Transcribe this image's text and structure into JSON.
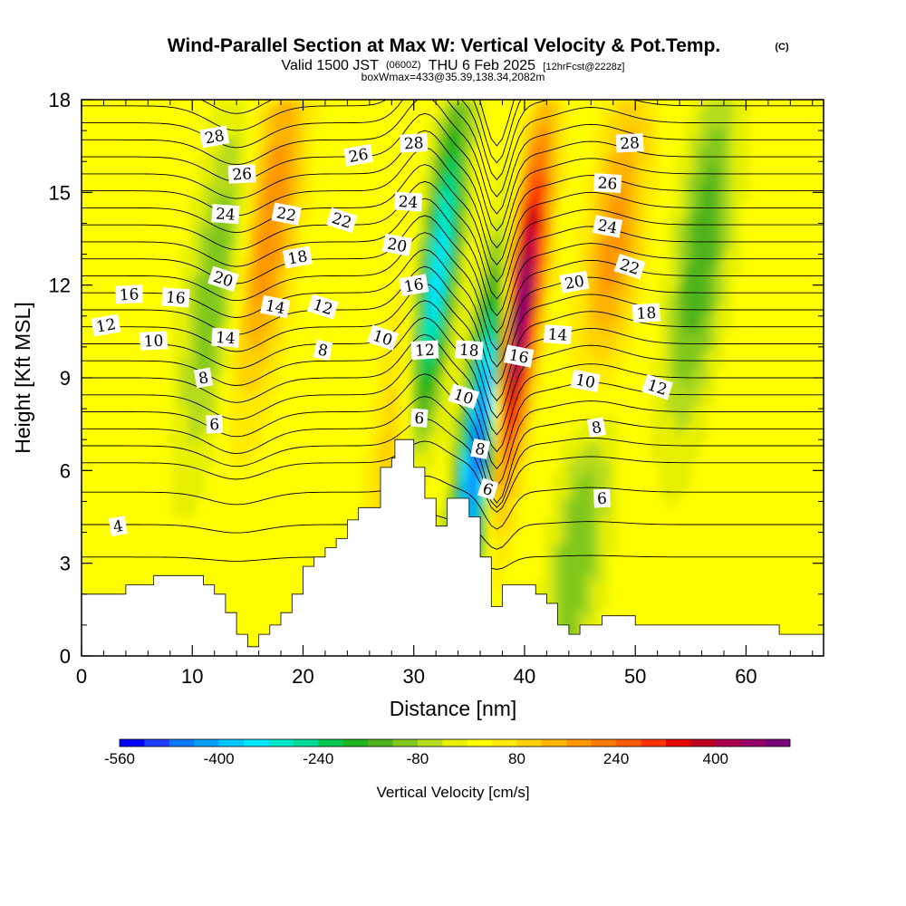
{
  "header": {
    "title": "Wind-Parallel Section at Max W: Vertical Velocity & Pot.Temp.",
    "copyright": "(C)",
    "valid_prefix": "Valid 1500 JST",
    "valid_utc": "(0600Z)",
    "valid_date": "THU 6 Feb 2025",
    "forecast": "[12hrFcst@2228z]",
    "box_info": "boxWmax=433@35.39,138.34,2082m"
  },
  "chart_data": {
    "type": "heatmap",
    "xlabel": "Distance [nm]",
    "ylabel": "Height [Kft MSL]",
    "xlim": [
      0,
      67
    ],
    "ylim": [
      0,
      18
    ],
    "x_ticks": [
      0,
      10,
      20,
      30,
      40,
      50,
      60
    ],
    "x_tick_labels": [
      "0",
      "10",
      "20",
      "30",
      "40",
      "50",
      "60"
    ],
    "y_ticks": [
      0,
      3,
      6,
      9,
      12,
      15,
      18
    ],
    "y_tick_labels": [
      "0",
      "3",
      "6",
      "9",
      "12",
      "15",
      "18"
    ],
    "field": "Vertical Velocity",
    "colorbar": {
      "title": "Vertical Velocity [cm/s]",
      "min": -560,
      "max": 520,
      "step": 40,
      "labels": [
        "-560",
        "-400",
        "-240",
        "-80",
        "80",
        "240",
        "400"
      ],
      "label_values": [
        -560,
        -400,
        -240,
        -80,
        80,
        240,
        400
      ],
      "colors": [
        "#0000ff",
        "#1e3cff",
        "#0a78ff",
        "#00a0ff",
        "#00c8ff",
        "#00e6ff",
        "#00e6c8",
        "#00dc96",
        "#00c850",
        "#1eb41e",
        "#50b41e",
        "#82c81e",
        "#b4dc1e",
        "#e6f000",
        "#ffff00",
        "#ffeb00",
        "#ffd200",
        "#ffb400",
        "#ff9600",
        "#ff7800",
        "#ff5a00",
        "#ff3200",
        "#e60000",
        "#be001e",
        "#aa0050",
        "#960064",
        "#780078"
      ]
    },
    "w_extrema": [
      {
        "x": 32,
        "z": 12,
        "w": -420
      },
      {
        "x": 36,
        "z": 7,
        "w": -560
      },
      {
        "x": 39.5,
        "z": 11,
        "w": 520
      },
      {
        "x": 29,
        "z": 7,
        "w": 130
      },
      {
        "x": 17,
        "z": 14,
        "w": 180
      },
      {
        "x": 48,
        "z": 13,
        "w": 170
      },
      {
        "x": 12,
        "z": 12,
        "w": -140
      },
      {
        "x": 56,
        "z": 13,
        "w": -180
      },
      {
        "x": 45,
        "z": 4,
        "w": -150
      }
    ],
    "theta_contour_labels": [
      {
        "text": "28",
        "x": 12,
        "z": 16.8
      },
      {
        "text": "26",
        "x": 14.5,
        "z": 15.6
      },
      {
        "text": "24",
        "x": 13,
        "z": 14.3
      },
      {
        "text": "22",
        "x": 18.5,
        "z": 14.3
      },
      {
        "text": "22",
        "x": 23.5,
        "z": 14.1
      },
      {
        "text": "26",
        "x": 25,
        "z": 16.2
      },
      {
        "text": "28",
        "x": 30,
        "z": 16.6
      },
      {
        "text": "24",
        "x": 29.5,
        "z": 14.7
      },
      {
        "text": "20",
        "x": 28.5,
        "z": 13.3
      },
      {
        "text": "20",
        "x": 12.8,
        "z": 12.2
      },
      {
        "text": "18",
        "x": 19.5,
        "z": 12.9
      },
      {
        "text": "16",
        "x": 4.3,
        "z": 11.7
      },
      {
        "text": "16",
        "x": 8.5,
        "z": 11.6
      },
      {
        "text": "14",
        "x": 17.5,
        "z": 11.3
      },
      {
        "text": "12",
        "x": 21.8,
        "z": 11.3
      },
      {
        "text": "12",
        "x": 2.2,
        "z": 10.7
      },
      {
        "text": "10",
        "x": 6.5,
        "z": 10.2
      },
      {
        "text": "14",
        "x": 13,
        "z": 10.3
      },
      {
        "text": "8",
        "x": 21.8,
        "z": 9.9
      },
      {
        "text": "10",
        "x": 27.2,
        "z": 10.3
      },
      {
        "text": "16",
        "x": 30,
        "z": 12.0
      },
      {
        "text": "12",
        "x": 31,
        "z": 9.9
      },
      {
        "text": "18",
        "x": 35,
        "z": 9.9
      },
      {
        "text": "16",
        "x": 39.5,
        "z": 9.7
      },
      {
        "text": "10",
        "x": 34.5,
        "z": 8.4
      },
      {
        "text": "8",
        "x": 11,
        "z": 9.0
      },
      {
        "text": "6",
        "x": 12,
        "z": 7.5
      },
      {
        "text": "6",
        "x": 30.5,
        "z": 7.7
      },
      {
        "text": "8",
        "x": 36,
        "z": 6.7
      },
      {
        "text": "6",
        "x": 36.7,
        "z": 5.4
      },
      {
        "text": "4",
        "x": 3.3,
        "z": 4.2
      },
      {
        "text": "28",
        "x": 49.5,
        "z": 16.6
      },
      {
        "text": "26",
        "x": 47.5,
        "z": 15.3
      },
      {
        "text": "24",
        "x": 47.5,
        "z": 13.9
      },
      {
        "text": "22",
        "x": 49.5,
        "z": 12.6
      },
      {
        "text": "20",
        "x": 44.5,
        "z": 12.1
      },
      {
        "text": "18",
        "x": 51,
        "z": 11.1
      },
      {
        "text": "14",
        "x": 43,
        "z": 10.4
      },
      {
        "text": "10",
        "x": 45.5,
        "z": 8.9
      },
      {
        "text": "12",
        "x": 52,
        "z": 8.7
      },
      {
        "text": "8",
        "x": 46.5,
        "z": 7.4
      },
      {
        "text": "6",
        "x": 47,
        "z": 5.1
      }
    ],
    "terrain_profile": [
      [
        0,
        2.0
      ],
      [
        4,
        2.0
      ],
      [
        4,
        2.3
      ],
      [
        6.5,
        2.3
      ],
      [
        6.5,
        2.6
      ],
      [
        11,
        2.6
      ],
      [
        11,
        2.3
      ],
      [
        12,
        2.3
      ],
      [
        12,
        2.0
      ],
      [
        13,
        2.0
      ],
      [
        13,
        1.4
      ],
      [
        14,
        1.4
      ],
      [
        14,
        0.7
      ],
      [
        15,
        0.7
      ],
      [
        15,
        0.3
      ],
      [
        16,
        0.3
      ],
      [
        16,
        0.7
      ],
      [
        17,
        0.7
      ],
      [
        17,
        1.0
      ],
      [
        18,
        1.0
      ],
      [
        18,
        1.4
      ],
      [
        19,
        1.4
      ],
      [
        19,
        2.0
      ],
      [
        20,
        2.0
      ],
      [
        20,
        2.9
      ],
      [
        21,
        2.9
      ],
      [
        21,
        3.2
      ],
      [
        22,
        3.2
      ],
      [
        22,
        3.5
      ],
      [
        23,
        3.5
      ],
      [
        23,
        3.8
      ],
      [
        24,
        3.8
      ],
      [
        24,
        4.4
      ],
      [
        25,
        4.4
      ],
      [
        25,
        4.8
      ],
      [
        27,
        4.8
      ],
      [
        27,
        6.1
      ],
      [
        28,
        6.1
      ],
      [
        28,
        6.4
      ],
      [
        28.3,
        6.4
      ],
      [
        28.3,
        7.0
      ],
      [
        30,
        7.0
      ],
      [
        30,
        6.1
      ],
      [
        31,
        6.1
      ],
      [
        31,
        5.1
      ],
      [
        32,
        5.1
      ],
      [
        32,
        4.2
      ],
      [
        33,
        4.2
      ],
      [
        33,
        5.1
      ],
      [
        35,
        5.1
      ],
      [
        35,
        4.5
      ],
      [
        36,
        4.5
      ],
      [
        36,
        3.2
      ],
      [
        37,
        3.2
      ],
      [
        37,
        1.6
      ],
      [
        38,
        1.6
      ],
      [
        38,
        2.3
      ],
      [
        41,
        2.3
      ],
      [
        41,
        2.0
      ],
      [
        42,
        2.0
      ],
      [
        42,
        1.7
      ],
      [
        43,
        1.7
      ],
      [
        43,
        1.0
      ],
      [
        44,
        1.0
      ],
      [
        44,
        0.7
      ],
      [
        45,
        0.7
      ],
      [
        45,
        1.0
      ],
      [
        47,
        1.0
      ],
      [
        47,
        1.3
      ],
      [
        50,
        1.3
      ],
      [
        50,
        1.0
      ],
      [
        63,
        1.0
      ],
      [
        63,
        0.7
      ],
      [
        67,
        0.7
      ]
    ]
  }
}
